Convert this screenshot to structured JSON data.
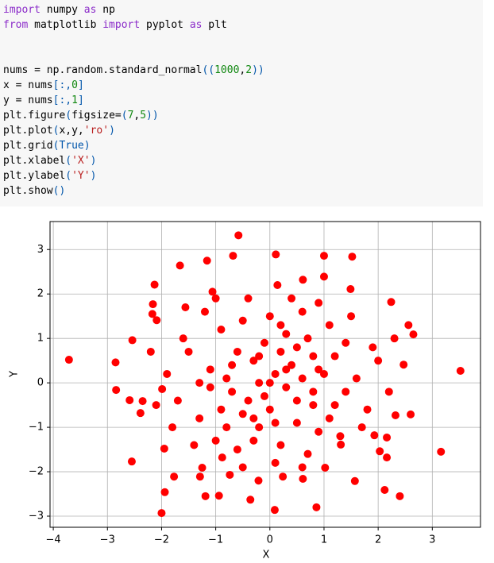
{
  "code": {
    "lines": [
      [
        {
          "text": "import",
          "color": "#8b2cc9"
        },
        {
          "text": " numpy ",
          "color": "#000000"
        },
        {
          "text": "as",
          "color": "#8b2cc9"
        },
        {
          "text": " np",
          "color": "#000000"
        }
      ],
      [
        {
          "text": "from",
          "color": "#8b2cc9"
        },
        {
          "text": " matplotlib ",
          "color": "#000000"
        },
        {
          "text": "import",
          "color": "#8b2cc9"
        },
        {
          "text": " pyplot ",
          "color": "#000000"
        },
        {
          "text": "as",
          "color": "#8b2cc9"
        },
        {
          "text": " plt",
          "color": "#000000"
        }
      ],
      [],
      [],
      [
        {
          "text": "nums = np.random.standard_normal",
          "color": "#000000"
        },
        {
          "text": "((",
          "color": "#0055aa"
        },
        {
          "text": "1000",
          "color": "#118811"
        },
        {
          "text": ",",
          "color": "#000000"
        },
        {
          "text": "2",
          "color": "#118811"
        },
        {
          "text": "))",
          "color": "#0055aa"
        }
      ],
      [
        {
          "text": "x = nums",
          "color": "#000000"
        },
        {
          "text": "[:,",
          "color": "#0055aa"
        },
        {
          "text": "0",
          "color": "#118811"
        },
        {
          "text": "]",
          "color": "#0055aa"
        }
      ],
      [
        {
          "text": "y = nums",
          "color": "#000000"
        },
        {
          "text": "[:,",
          "color": "#0055aa"
        },
        {
          "text": "1",
          "color": "#118811"
        },
        {
          "text": "]",
          "color": "#0055aa"
        }
      ],
      [
        {
          "text": "plt.figure",
          "color": "#000000"
        },
        {
          "text": "(",
          "color": "#0055aa"
        },
        {
          "text": "figsize=",
          "color": "#000000"
        },
        {
          "text": "(",
          "color": "#0055aa"
        },
        {
          "text": "7",
          "color": "#118811"
        },
        {
          "text": ",",
          "color": "#000000"
        },
        {
          "text": "5",
          "color": "#118811"
        },
        {
          "text": "))",
          "color": "#0055aa"
        }
      ],
      [
        {
          "text": "plt.plot",
          "color": "#000000"
        },
        {
          "text": "(",
          "color": "#0055aa"
        },
        {
          "text": "x,y,",
          "color": "#000000"
        },
        {
          "text": "'ro'",
          "color": "#ba2121"
        },
        {
          "text": ")",
          "color": "#0055aa"
        }
      ],
      [
        {
          "text": "plt.grid",
          "color": "#000000"
        },
        {
          "text": "(True)",
          "color": "#0055aa"
        }
      ],
      [
        {
          "text": "plt.xlabel",
          "color": "#000000"
        },
        {
          "text": "(",
          "color": "#0055aa"
        },
        {
          "text": "'X'",
          "color": "#ba2121"
        },
        {
          "text": ")",
          "color": "#0055aa"
        }
      ],
      [
        {
          "text": "plt.ylabel",
          "color": "#000000"
        },
        {
          "text": "(",
          "color": "#0055aa"
        },
        {
          "text": "'Y'",
          "color": "#ba2121"
        },
        {
          "text": ")",
          "color": "#0055aa"
        }
      ],
      [
        {
          "text": "plt.show",
          "color": "#000000"
        },
        {
          "text": "()",
          "color": "#0055aa"
        }
      ]
    ]
  },
  "chart_data": {
    "type": "scatter",
    "xlabel": "X",
    "ylabel": "Y",
    "color": "#ff0000",
    "grid": true,
    "xlim": [
      -4.06,
      3.89
    ],
    "ylim": [
      -3.25,
      3.63
    ],
    "xticks": [
      {
        "value": -4,
        "label": "−4"
      },
      {
        "value": -3,
        "label": "−3"
      },
      {
        "value": -2,
        "label": "−2"
      },
      {
        "value": -1,
        "label": "−1"
      },
      0,
      1,
      2,
      3
    ],
    "yticks": [
      {
        "value": -3,
        "label": "−3"
      },
      {
        "value": -2,
        "label": "−2"
      },
      {
        "value": -1,
        "label": "−1"
      },
      0,
      1,
      2,
      3
    ],
    "x": [
      -3.71,
      3.52,
      3.16,
      -0.58,
      0.11,
      1.0,
      1.52,
      -0.68,
      -1.16,
      -1.66,
      -2.0,
      0.09,
      0.86,
      -2.55,
      -1.94,
      -1.19,
      -0.94,
      -0.36,
      2.4,
      2.12,
      -2.84,
      -2.85,
      -2.54,
      2.65,
      2.56,
      2.24,
      2.6,
      2.32,
      2.47,
      1.57,
      -2.13,
      -1.06,
      1.0,
      1.49,
      0.61,
      0.14,
      -1.56,
      -2.16,
      -2.17,
      -2.09,
      -1.77,
      -1.29,
      -1.25,
      -1.95,
      2.16,
      2.03,
      -2.39,
      -2.35,
      -2.59,
      -1.99,
      2.16,
      1.93,
      1.31,
      1.02,
      0.61,
      0.24,
      -0.21,
      -0.74,
      -0.88,
      0.1,
      -0.3,
      0.5,
      -0.7,
      0.8,
      -1.1,
      1.2,
      0.3,
      -0.2,
      0.9,
      -1.3,
      1.4,
      -0.5,
      0.6,
      -0.9,
      1.1,
      -1.5,
      1.6,
      -1.7,
      0.0,
      0.4,
      -0.4,
      0.2,
      -0.6,
      0.7,
      -1.0,
      1.3,
      1.8,
      -1.9,
      2.0,
      -0.1,
      0.3,
      -0.8,
      0.6,
      -0.2,
      0.0,
      1.0,
      -1.2,
      1.5,
      -1.4,
      0.5,
      -0.3,
      0.8,
      -0.6,
      1.7,
      -1.6,
      0.2,
      -0.9,
      1.1,
      -0.1,
      0.7,
      -0.4,
      0.4,
      0.9,
      -1.0,
      2.2,
      -2.1,
      2.3,
      -2.2,
      0.1,
      -0.5,
      0.6,
      1.9,
      -1.8,
      1.2,
      -1.1,
      0.3,
      -0.7,
      0.0,
      0.5,
      -0.2,
      0.8,
      -0.5,
      1.4,
      -1.3,
      0.1,
      0.9,
      -0.8,
      0.2,
      -0.3
    ],
    "y": [
      0.52,
      0.27,
      -1.55,
      3.32,
      2.89,
      2.86,
      2.84,
      2.86,
      2.75,
      2.64,
      -2.93,
      -2.86,
      -2.8,
      -1.77,
      -2.46,
      -2.55,
      -2.54,
      -2.63,
      -2.55,
      -2.41,
      -0.16,
      0.46,
      0.96,
      1.09,
      1.3,
      1.82,
      -0.71,
      -0.73,
      0.41,
      -2.21,
      2.21,
      2.05,
      2.39,
      2.11,
      2.32,
      2.2,
      1.7,
      1.77,
      1.55,
      1.41,
      -2.11,
      -2.11,
      -1.91,
      -1.48,
      -1.68,
      -1.54,
      -0.68,
      -0.41,
      -0.39,
      -0.14,
      -1.23,
      -1.18,
      -1.39,
      -1.91,
      -2.16,
      -2.11,
      -2.2,
      -2.07,
      -1.68,
      0.2,
      0.5,
      -0.4,
      -0.2,
      0.6,
      0.3,
      -0.5,
      1.1,
      -1.0,
      -1.1,
      -0.8,
      0.9,
      1.4,
      1.6,
      1.2,
      1.3,
      0.7,
      0.1,
      -0.4,
      -0.6,
      0.4,
      -0.4,
      -1.4,
      -1.5,
      -1.6,
      -1.3,
      -1.2,
      -0.6,
      0.2,
      0.5,
      0.9,
      -0.1,
      0.1,
      0.1,
      0.0,
      1.5,
      0.2,
      1.6,
      1.5,
      -1.4,
      -0.9,
      -0.8,
      -0.2,
      0.7,
      -1.0,
      1.0,
      0.7,
      -0.6,
      -0.8,
      -0.3,
      1.0,
      1.9,
      1.9,
      1.8,
      1.9,
      -0.2,
      -0.5,
      1.0,
      0.7,
      -1.8,
      -1.9,
      -1.9,
      0.8,
      -1.0,
      0.6,
      -0.1,
      0.3,
      0.4,
      0.0,
      0.8,
      0.6,
      -0.5,
      -0.7,
      -0.2,
      0.0,
      -0.9,
      0.3,
      -1.0,
      1.3,
      -1.3
    ]
  }
}
